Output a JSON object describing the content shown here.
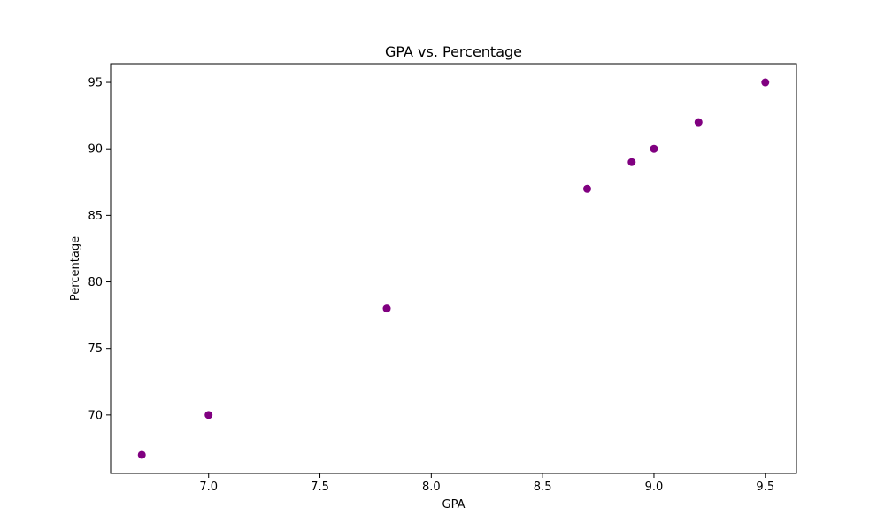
{
  "chart_data": {
    "type": "scatter",
    "title": "GPA vs. Percentage",
    "xlabel": "GPA",
    "ylabel": "Percentage",
    "x": [
      6.7,
      7.0,
      7.8,
      8.7,
      8.9,
      9.0,
      9.2,
      9.5
    ],
    "y": [
      67,
      70,
      78,
      87,
      89,
      90,
      92,
      95
    ],
    "xlim": [
      6.56,
      9.64
    ],
    "ylim": [
      65.6,
      96.4
    ],
    "xticks": [
      "7.0",
      "7.5",
      "8.0",
      "8.5",
      "9.0",
      "9.5"
    ],
    "yticks": [
      "70",
      "75",
      "80",
      "85",
      "90",
      "95"
    ],
    "marker_color": "#800080",
    "grid": false,
    "legend": false
  }
}
